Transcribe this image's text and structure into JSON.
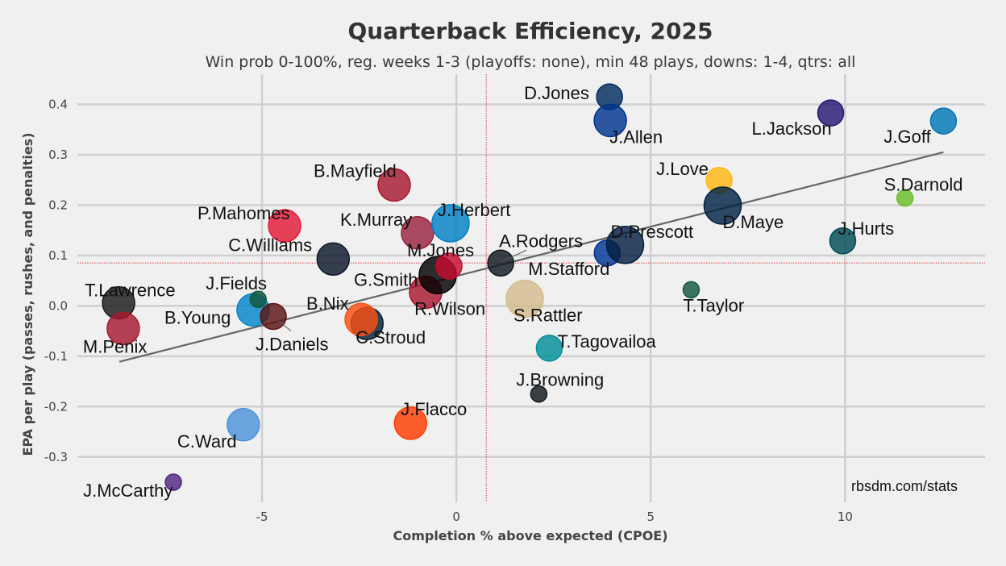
{
  "chart_data": {
    "type": "scatter",
    "title": "Quarterback Efficiency, 2025",
    "subtitle": "Win prob 0-100%, reg. weeks 1-3 (playoffs: none), min 48 plays, downs: 1-4, qtrs: all",
    "xlabel": "Completion % above expected (CPOE)",
    "ylabel": "EPA per play (passes, rushes, and penalties)",
    "xlim": [
      -9.75,
      13.6
    ],
    "ylim": [
      -0.39,
      0.46
    ],
    "xticks": [
      -5,
      0,
      5,
      10
    ],
    "xtick_labels": [
      "-5",
      "0",
      "5",
      "10"
    ],
    "yticks": [
      0.4,
      0.3,
      0.2,
      0.1,
      0.0,
      -0.1,
      -0.2,
      -0.3
    ],
    "ytick_labels": [
      "0.4",
      "0.3",
      "0.2",
      "0.1",
      "0.0",
      "-0.1",
      "-0.2",
      "-0.3"
    ],
    "grid": true,
    "reference_lines": {
      "mean_cpoe": 0.77,
      "mean_epa": 0.085
    },
    "trendline": {
      "x": [
        -8.67,
        12.53
      ],
      "y": [
        -0.111,
        0.305
      ]
    },
    "credit": "rbsdm.com/stats",
    "points": [
      {
        "name": "T.Lawrence",
        "x": -8.69,
        "y": 0.006,
        "plays": "large",
        "color": "#1a1a1a"
      },
      {
        "name": "M.Penix",
        "x": -8.57,
        "y": -0.045,
        "plays": "large",
        "color": "#a71930"
      },
      {
        "name": "J.McCarthy",
        "x": -7.28,
        "y": -0.35,
        "plays": "small",
        "color": "#4f2683"
      },
      {
        "name": "C.Ward",
        "x": -5.48,
        "y": -0.236,
        "plays": "large",
        "color": "#4b92db"
      },
      {
        "name": "B.Young",
        "x": -5.23,
        "y": -0.008,
        "plays": "large",
        "color": "#0085ca"
      },
      {
        "name": "J.Fields",
        "x": -5.1,
        "y": 0.013,
        "plays": "small",
        "color": "#125740"
      },
      {
        "name": "J.Daniels",
        "x": -4.71,
        "y": -0.021,
        "plays": "medium",
        "color": "#5a1414"
      },
      {
        "name": "P.Mahomes",
        "x": -4.42,
        "y": 0.159,
        "plays": "large",
        "color": "#e31837"
      },
      {
        "name": "C.Williams",
        "x": -3.17,
        "y": 0.093,
        "plays": "large",
        "color": "#0b162a"
      },
      {
        "name": "C.Stroud",
        "x": -2.3,
        "y": -0.035,
        "plays": "large",
        "color": "#03202f"
      },
      {
        "name": "B.Nix",
        "x": -2.45,
        "y": -0.027,
        "plays": "large",
        "color": "#fb4f14"
      },
      {
        "name": "B.Mayfield",
        "x": -1.6,
        "y": 0.24,
        "plays": "large",
        "color": "#a71930"
      },
      {
        "name": "J.Flacco",
        "x": -1.18,
        "y": -0.233,
        "plays": "large",
        "color": "#ff3c00"
      },
      {
        "name": "K.Murray",
        "x": -1.0,
        "y": 0.145,
        "plays": "large",
        "color": "#97233f"
      },
      {
        "name": "R.Wilson",
        "x": -0.79,
        "y": 0.027,
        "plays": "large",
        "color": "#a71930"
      },
      {
        "name": "G.Smith",
        "x": -0.48,
        "y": 0.061,
        "plays": "xlarge",
        "color": "#000000"
      },
      {
        "name": "M.Jones",
        "x": -0.19,
        "y": 0.079,
        "plays": "medium",
        "color": "#c60c30"
      },
      {
        "name": "J.Herbert",
        "x": -0.15,
        "y": 0.164,
        "plays": "xlarge",
        "color": "#0080c6"
      },
      {
        "name": "A.Rodgers",
        "x": 1.14,
        "y": 0.085,
        "plays": "medium",
        "color": "#101820"
      },
      {
        "name": "S.Rattler",
        "x": 1.76,
        "y": 0.014,
        "plays": "xlarge",
        "color": "#d3bc8d"
      },
      {
        "name": "J.Browning",
        "x": 2.12,
        "y": -0.175,
        "plays": "small",
        "color": "#101820"
      },
      {
        "name": "T.Tagovailoa",
        "x": 2.39,
        "y": -0.084,
        "plays": "medium",
        "color": "#008e97"
      },
      {
        "name": "M.Stafford",
        "x": 3.88,
        "y": 0.105,
        "plays": "medium",
        "color": "#003594"
      },
      {
        "name": "D.Jones",
        "x": 3.94,
        "y": 0.415,
        "plays": "medium",
        "color": "#002c5f"
      },
      {
        "name": "J.Allen",
        "x": 3.96,
        "y": 0.368,
        "plays": "large",
        "color": "#00338d"
      },
      {
        "name": "D.Prescott",
        "x": 4.34,
        "y": 0.121,
        "plays": "xlarge",
        "color": "#041e42"
      },
      {
        "name": "T.Taylor",
        "x": 6.04,
        "y": 0.032,
        "plays": "small",
        "color": "#125740"
      },
      {
        "name": "J.Love",
        "x": 6.76,
        "y": 0.249,
        "plays": "medium",
        "color": "#ffb612"
      },
      {
        "name": "D.Maye",
        "x": 6.85,
        "y": 0.199,
        "plays": "xlarge",
        "color": "#002244"
      },
      {
        "name": "L.Jackson",
        "x": 9.63,
        "y": 0.383,
        "plays": "medium",
        "color": "#241773"
      },
      {
        "name": "J.Hurts",
        "x": 9.94,
        "y": 0.129,
        "plays": "medium",
        "color": "#004c54"
      },
      {
        "name": "S.Darnold",
        "x": 11.54,
        "y": 0.214,
        "plays": "small",
        "color": "#69be28"
      },
      {
        "name": "J.Goff",
        "x": 12.53,
        "y": 0.367,
        "plays": "medium",
        "color": "#0076b6"
      }
    ]
  }
}
